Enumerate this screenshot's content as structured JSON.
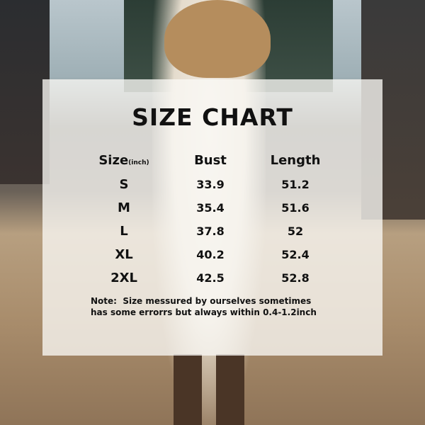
{
  "size_chart": {
    "title": "SIZE CHART",
    "headers": {
      "size": "Size",
      "size_unit": "(inch)",
      "bust": "Bust",
      "length": "Length"
    },
    "rows": [
      {
        "size": "S",
        "bust": "33.9",
        "length": "51.2"
      },
      {
        "size": "M",
        "bust": "35.4",
        "length": "51.6"
      },
      {
        "size": "L",
        "bust": "37.8",
        "length": "52"
      },
      {
        "size": "XL",
        "bust": "40.2",
        "length": "52.4"
      },
      {
        "size": "2XL",
        "bust": "42.5",
        "length": "52.8"
      }
    ],
    "note_line1": "Note:  Size messured by ourselves sometimes",
    "note_line2": "has some errorrs but always within 0.4-1.2inch"
  }
}
